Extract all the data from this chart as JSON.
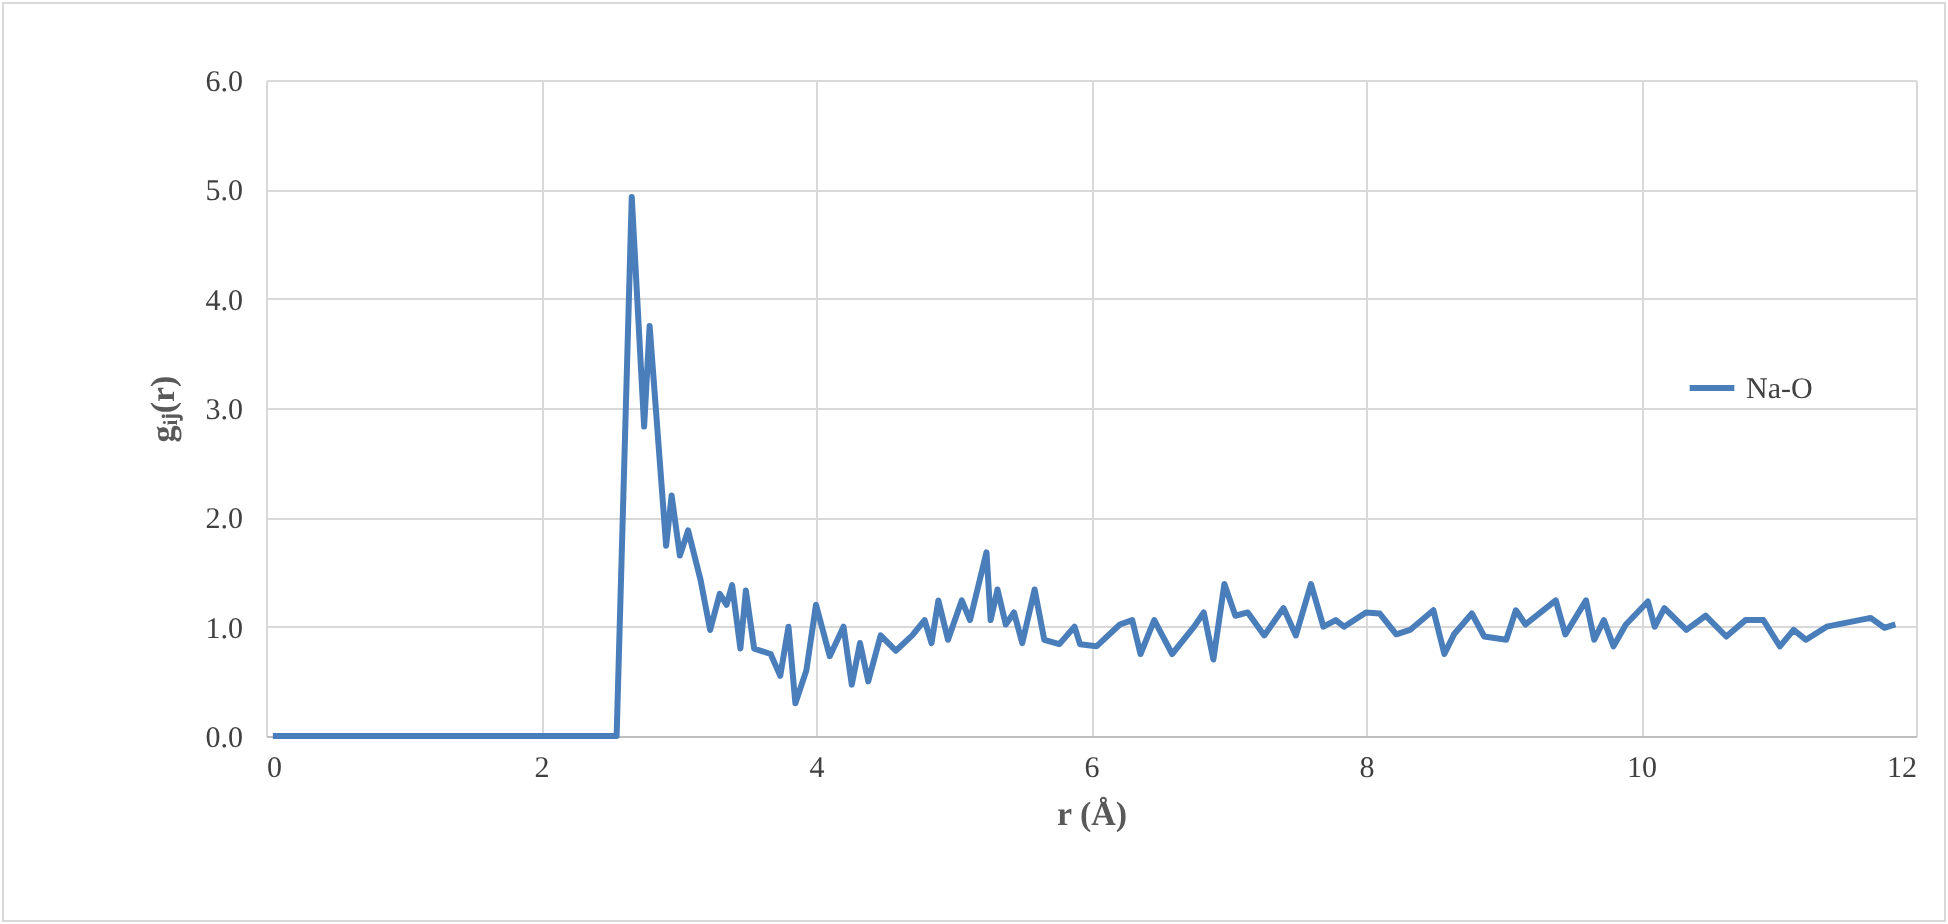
{
  "chart_data": {
    "type": "line",
    "xlabel": "r (Å)",
    "ylabel": "gᵢⱼ(r)",
    "xlim": [
      0,
      12
    ],
    "xticks": [
      0,
      2,
      4,
      6,
      8,
      10,
      12
    ],
    "ylim": [
      0,
      6
    ],
    "yticks": [
      {
        "value": 0,
        "label": "0.0"
      },
      {
        "value": 1,
        "label": "1.0"
      },
      {
        "value": 2,
        "label": "2.0"
      },
      {
        "value": 3,
        "label": "3.0"
      },
      {
        "value": 4,
        "label": "4.0"
      },
      {
        "value": 5,
        "label": "5.0"
      },
      {
        "value": 6,
        "label": "6.0"
      }
    ],
    "grid": true,
    "legend": "right",
    "line_style": "solid",
    "marker": "none",
    "x": [
      0.05,
      2.55,
      2.66,
      2.75,
      2.79,
      2.91,
      2.95,
      3.01,
      3.07,
      3.16,
      3.23,
      3.3,
      3.35,
      3.39,
      3.45,
      3.49,
      3.55,
      3.67,
      3.74,
      3.8,
      3.85,
      3.93,
      4.0,
      4.1,
      4.2,
      4.26,
      4.32,
      4.38,
      4.47,
      4.58,
      4.7,
      4.79,
      4.84,
      4.89,
      4.96,
      5.06,
      5.12,
      5.24,
      5.27,
      5.32,
      5.38,
      5.44,
      5.5,
      5.59,
      5.66,
      5.77,
      5.88,
      5.92,
      6.04,
      6.21,
      6.3,
      6.36,
      6.46,
      6.59,
      6.75,
      6.82,
      6.89,
      6.97,
      7.05,
      7.14,
      7.26,
      7.4,
      7.49,
      7.6,
      7.69,
      7.78,
      7.84,
      8.0,
      8.1,
      8.22,
      8.32,
      8.49,
      8.57,
      8.64,
      8.77,
      8.86,
      9.02,
      9.09,
      9.16,
      9.38,
      9.45,
      9.6,
      9.66,
      9.73,
      9.8,
      9.89,
      10.05,
      10.1,
      10.17,
      10.33,
      10.47,
      10.62,
      10.76,
      10.89,
      11.01,
      11.11,
      11.2,
      11.35,
      11.67,
      11.77,
      11.85
    ],
    "series": [
      {
        "name": "Na-O",
        "color": "#4a7ebb",
        "values": [
          0,
          0,
          4.93,
          2.83,
          3.75,
          1.74,
          2.2,
          1.65,
          1.88,
          1.43,
          0.97,
          1.3,
          1.2,
          1.38,
          0.8,
          1.33,
          0.8,
          0.75,
          0.55,
          1.0,
          0.3,
          0.6,
          1.2,
          0.73,
          1.0,
          0.47,
          0.85,
          0.5,
          0.92,
          0.78,
          0.92,
          1.06,
          0.85,
          1.24,
          0.88,
          1.24,
          1.06,
          1.68,
          1.06,
          1.34,
          1.02,
          1.13,
          0.85,
          1.34,
          0.88,
          0.84,
          1.0,
          0.84,
          0.82,
          1.02,
          1.06,
          0.75,
          1.06,
          0.75,
          1.0,
          1.13,
          0.7,
          1.39,
          1.1,
          1.13,
          0.92,
          1.17,
          0.92,
          1.39,
          1.0,
          1.06,
          1.0,
          1.13,
          1.12,
          0.93,
          0.97,
          1.15,
          0.75,
          0.93,
          1.12,
          0.91,
          0.88,
          1.15,
          1.02,
          1.24,
          0.93,
          1.24,
          0.88,
          1.06,
          0.82,
          1.02,
          1.23,
          1.0,
          1.17,
          0.97,
          1.1,
          0.91,
          1.06,
          1.06,
          0.82,
          0.97,
          0.88,
          1.0,
          1.08,
          0.99,
          1.02
        ]
      }
    ]
  }
}
